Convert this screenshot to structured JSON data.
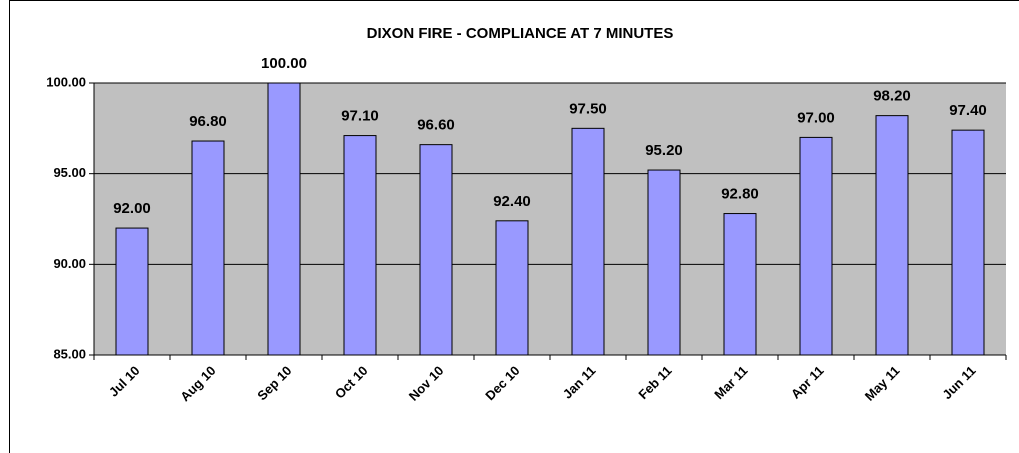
{
  "chart_data": {
    "type": "bar",
    "title": "DIXON FIRE - COMPLIANCE AT 7 MINUTES",
    "categories": [
      "Jul 10",
      "Aug 10",
      "Sep 10",
      "Oct 10",
      "Nov 10",
      "Dec 10",
      "Jan 11",
      "Feb 11",
      "Mar 11",
      "Apr 11",
      "May 11",
      "Jun 11"
    ],
    "values": [
      92,
      96.8,
      100,
      97.1,
      96.6,
      92.4,
      97.5,
      95.2,
      92.8,
      97,
      98.2,
      97.4
    ],
    "value_labels": [
      "92.00",
      "96.80",
      "100.00",
      "97.10",
      "96.60",
      "92.40",
      "97.50",
      "95.20",
      "92.80",
      "97.00",
      "98.20",
      "97.40"
    ],
    "color": "#9999ff",
    "ylim": [
      85,
      100
    ],
    "yticks": [
      {
        "value": 85,
        "label": "85.00"
      },
      {
        "value": 90,
        "label": "90.00"
      },
      {
        "value": 95,
        "label": "95.00"
      },
      {
        "value": 100,
        "label": "100.00"
      }
    ],
    "grid": true
  }
}
